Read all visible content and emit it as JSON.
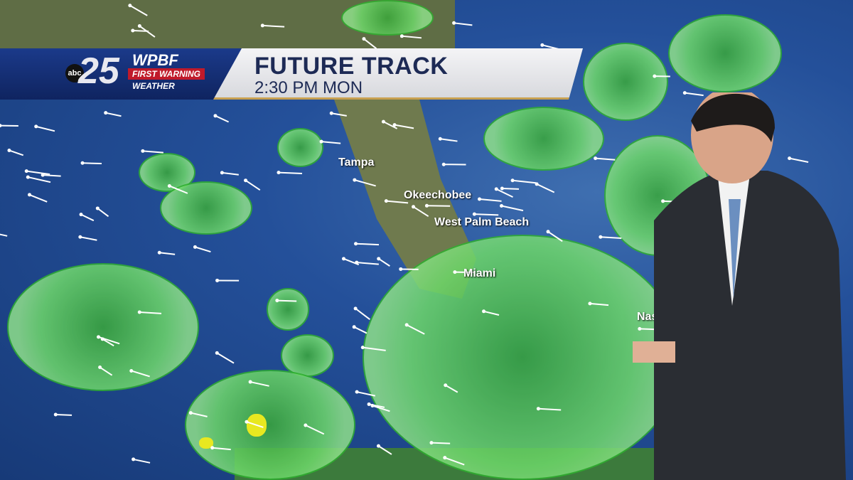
{
  "banner": {
    "network": "abc",
    "channel_number": "25",
    "station": "WPBF",
    "brand_line1": "FIRST WARNING",
    "brand_line2": "WEATHER",
    "title": "FUTURE TRACK",
    "subtitle": "2:30 PM MON"
  },
  "map": {
    "cities": [
      "Tampa",
      "Okeechobee",
      "West Palm Beach",
      "Miami",
      "Nas"
    ]
  },
  "colors": {
    "ocean": "#24509a",
    "rain": "#6ed86a",
    "heavy_rain": "#e8e820",
    "banner_blue": "#1b3a8a",
    "title_text": "#1d2a55"
  }
}
